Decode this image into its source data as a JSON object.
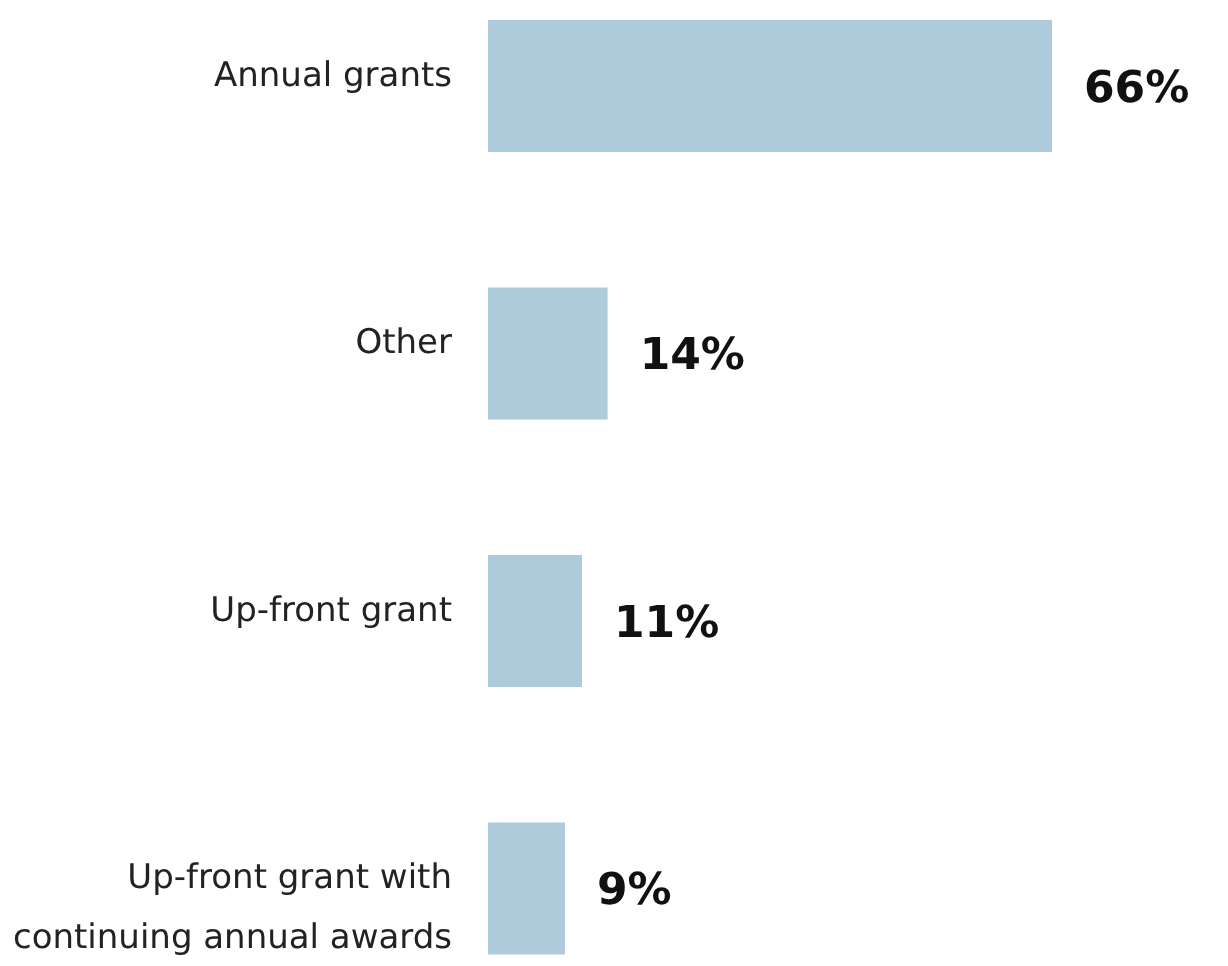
{
  "chart_data": {
    "type": "bar",
    "orientation": "horizontal",
    "categories": [
      "Annual grants",
      "Other",
      "Up-front grant",
      "Up-front grant with continuing annual awards"
    ],
    "values": [
      66,
      14,
      11,
      9
    ],
    "value_labels": [
      "66%",
      "14%",
      "11%",
      "9%"
    ],
    "color": "#aecbdc",
    "grid": false,
    "legend": false
  }
}
